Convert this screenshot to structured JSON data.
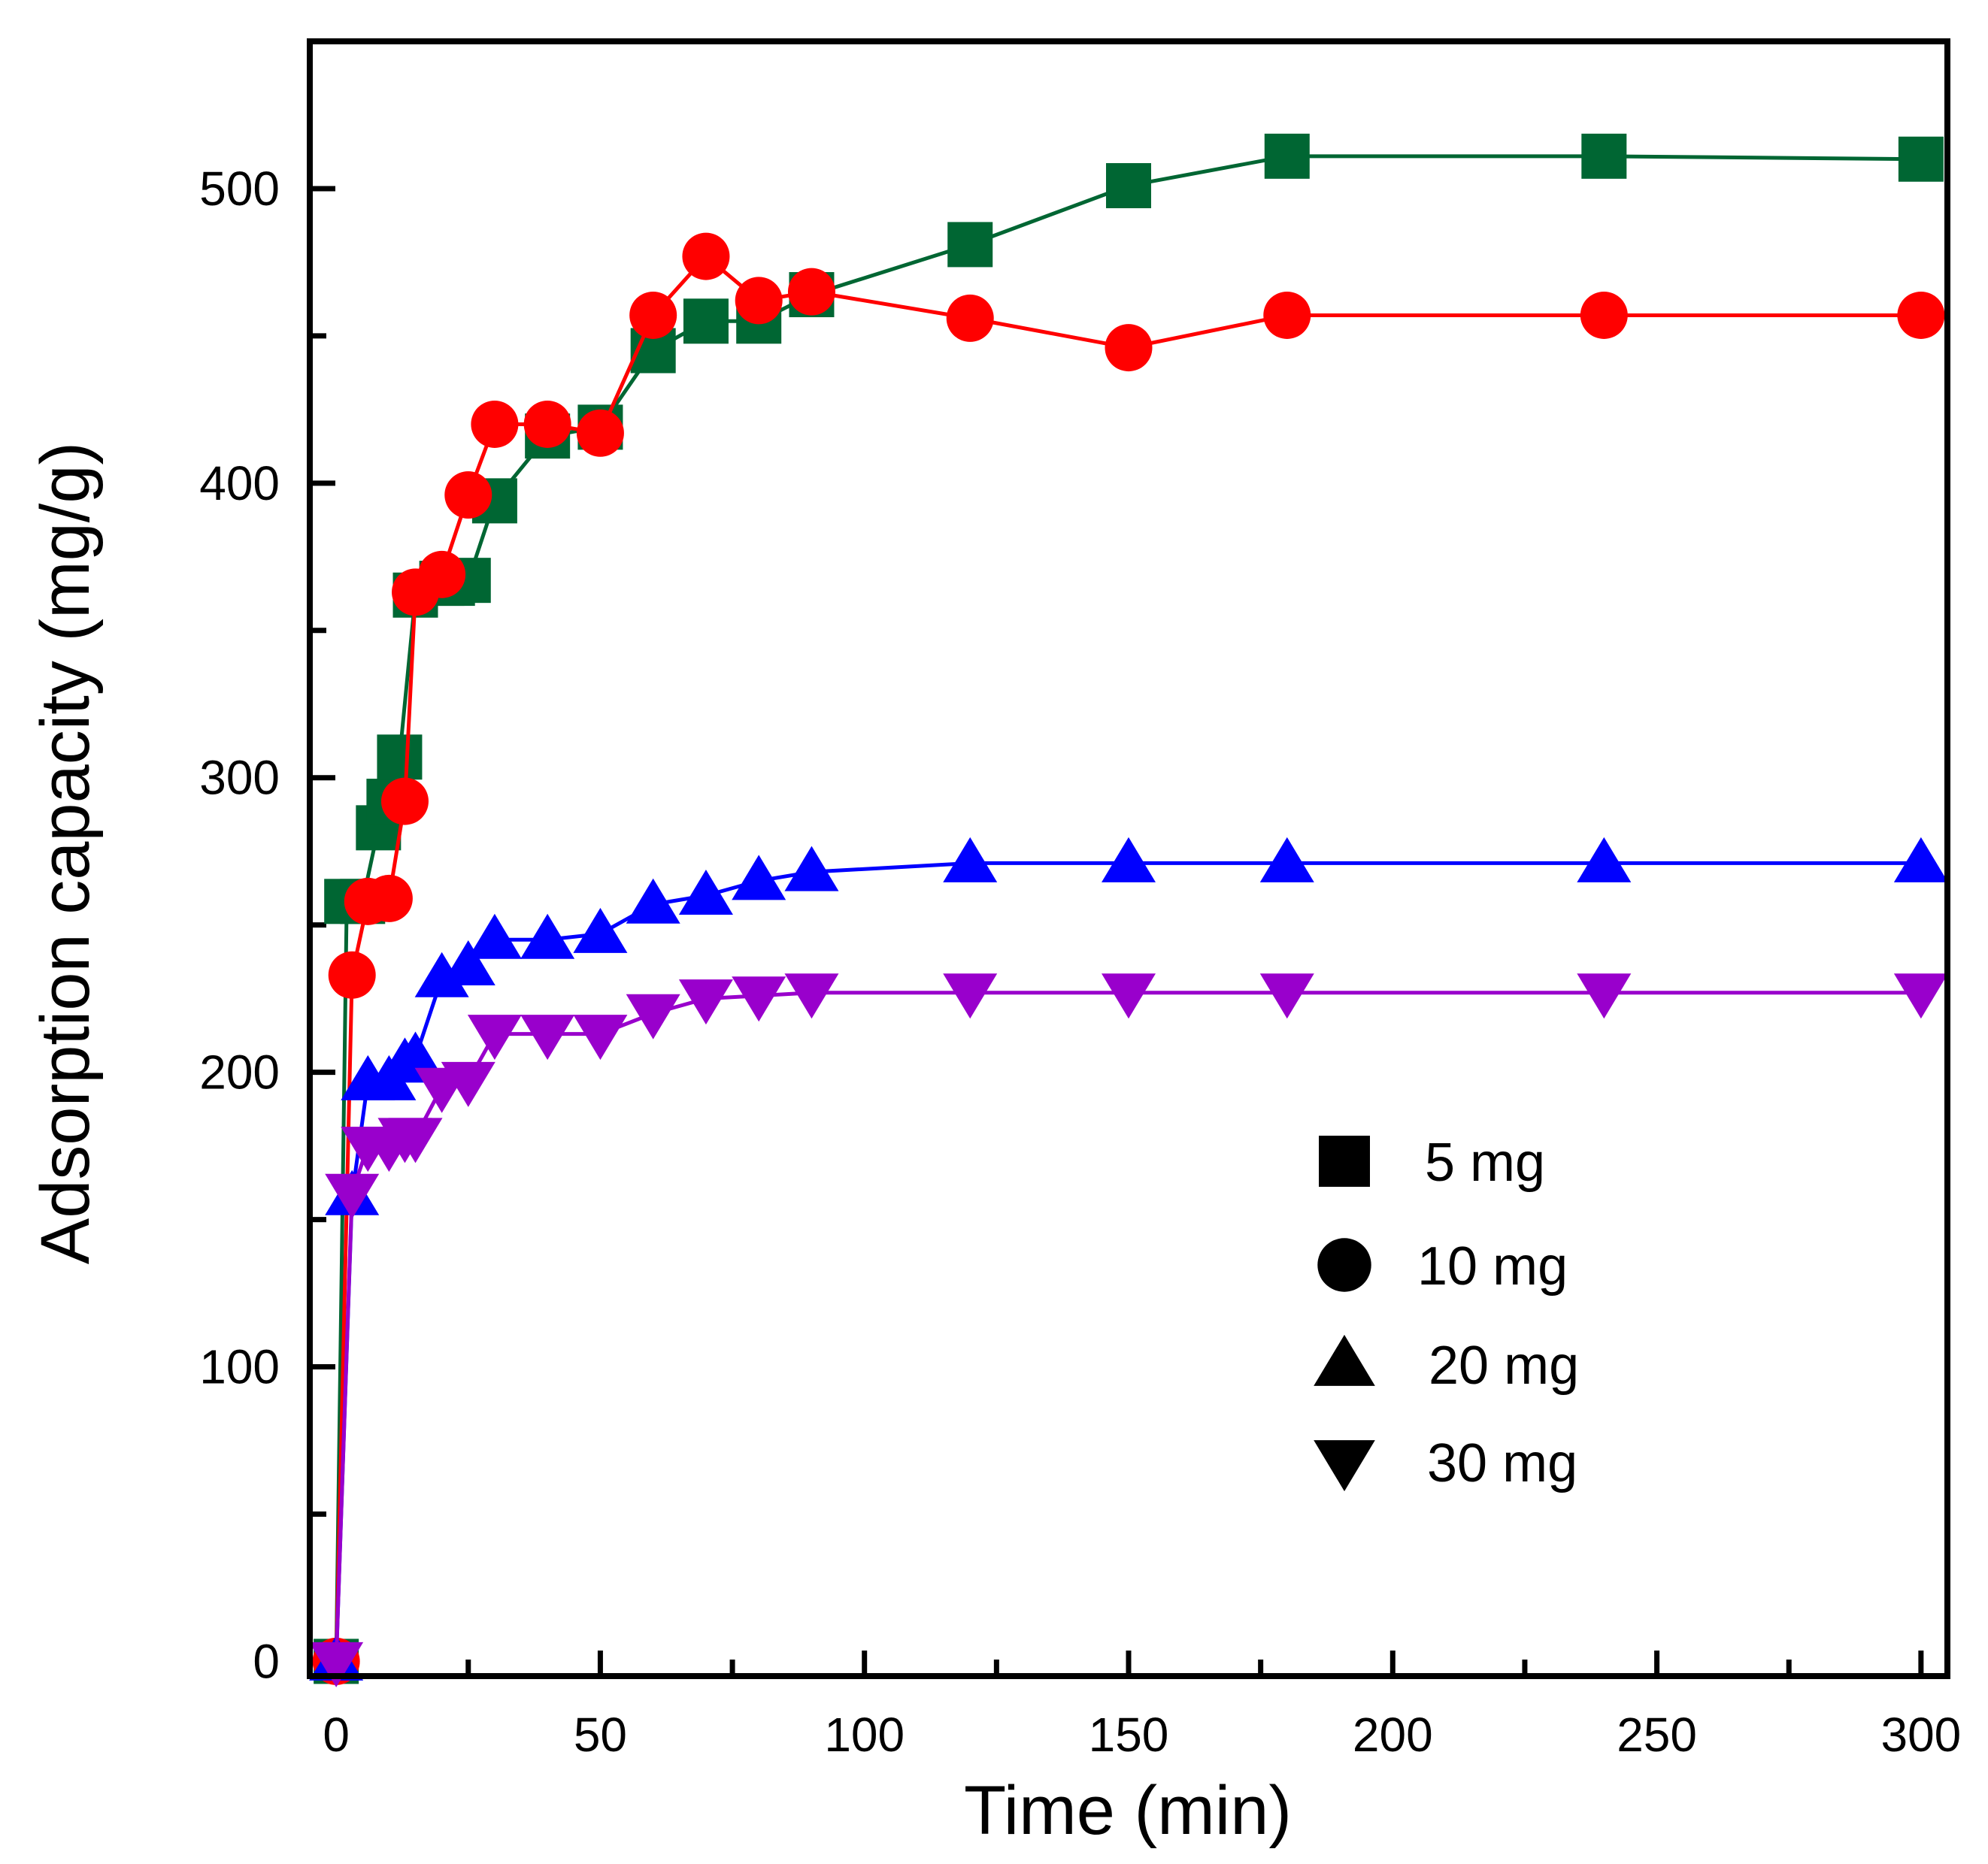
{
  "chart_data": {
    "type": "line",
    "title": "",
    "xlabel": "Time (min)",
    "ylabel": "Adsorption capacity (mg/g)",
    "xlim": [
      -5,
      305
    ],
    "ylim": [
      -5,
      550
    ],
    "xticks": [
      0,
      50,
      100,
      150,
      200,
      250,
      300
    ],
    "xminor": [
      25,
      75,
      125,
      175,
      225,
      275
    ],
    "yticks": [
      0,
      100,
      200,
      300,
      400,
      500
    ],
    "yminor": [
      50,
      150,
      250,
      350,
      450
    ],
    "legend_position": "lower-right",
    "series": [
      {
        "name": "5 mg",
        "marker": "square",
        "color": "#006633",
        "x": [
          0,
          2,
          5,
          8,
          10,
          12,
          15,
          20,
          22,
          25,
          30,
          40,
          50,
          60,
          70,
          80,
          90,
          120,
          150,
          180,
          240,
          300
        ],
        "y": [
          0,
          258,
          258,
          283,
          292,
          307,
          362,
          366,
          366,
          367,
          394,
          416,
          419,
          445,
          455,
          455,
          464,
          481,
          501,
          511,
          511,
          510
        ]
      },
      {
        "name": "10 mg",
        "marker": "circle",
        "color": "#ff0000",
        "x": [
          0,
          3,
          6,
          10,
          13,
          15,
          20,
          25,
          30,
          40,
          50,
          60,
          70,
          80,
          90,
          120,
          150,
          180,
          240,
          300
        ],
        "y": [
          0,
          233,
          258,
          259,
          292,
          363,
          369,
          396,
          420,
          420,
          417,
          457,
          477,
          462,
          465,
          456,
          446,
          457,
          457,
          457
        ]
      },
      {
        "name": "20 mg",
        "marker": "triangle-up",
        "color": "#0000ff",
        "x": [
          0,
          3,
          6,
          10,
          13,
          15,
          20,
          25,
          30,
          40,
          50,
          60,
          70,
          80,
          90,
          120,
          150,
          180,
          240,
          300
        ],
        "y": [
          0,
          158,
          197,
          197,
          203,
          205,
          232,
          236,
          245,
          245,
          247,
          257,
          260,
          265,
          268,
          271,
          271,
          271,
          271,
          271
        ]
      },
      {
        "name": "30 mg",
        "marker": "triangle-down",
        "color": "#9900cc",
        "x": [
          0,
          3,
          6,
          10,
          13,
          15,
          20,
          25,
          30,
          40,
          50,
          60,
          70,
          80,
          90,
          120,
          150,
          180,
          240,
          300
        ],
        "y": [
          0,
          159,
          175,
          175,
          178,
          178,
          195,
          197,
          213,
          213,
          213,
          220,
          225,
          226,
          227,
          227,
          227,
          227,
          227,
          227
        ]
      }
    ]
  }
}
